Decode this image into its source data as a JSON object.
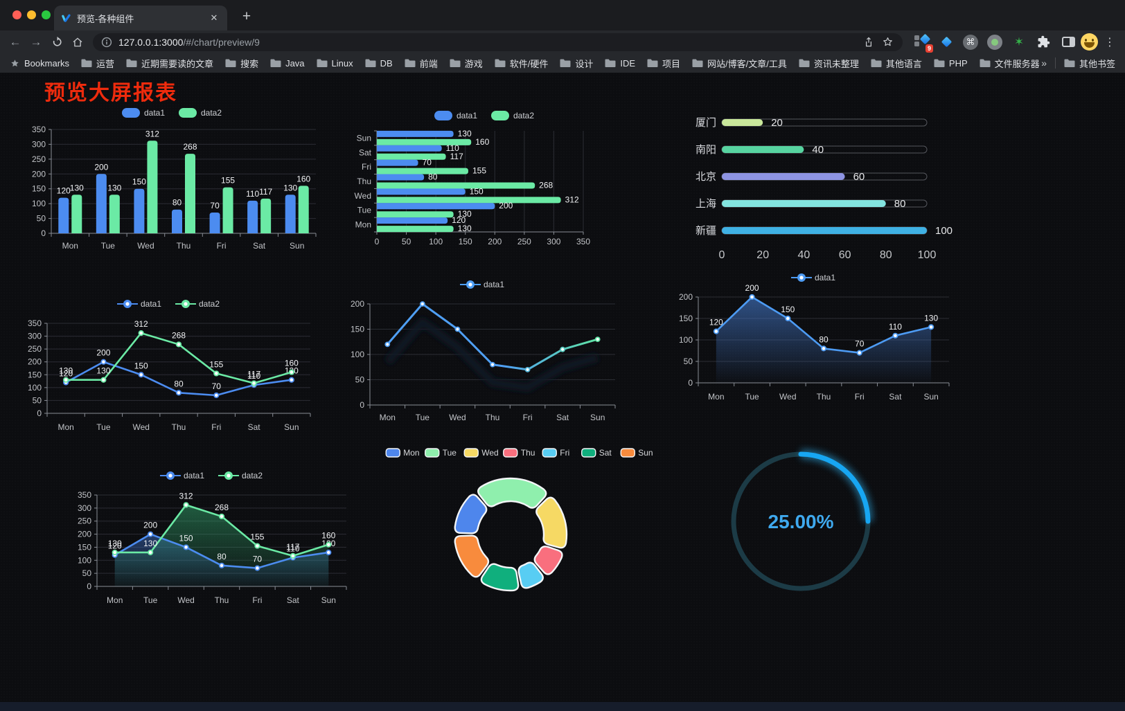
{
  "browser": {
    "tab_title": "预览-各种组件",
    "url_host": "127.0.0.1:3000",
    "url_path": "/#/chart/preview/9",
    "bookmarks_label": "Bookmarks",
    "bookmark_folders": [
      "运营",
      "近期需要读的文章",
      "搜索",
      "Java",
      "Linux",
      "DB",
      "前端",
      "游戏",
      "软件/硬件",
      "设计",
      "IDE",
      "项目",
      "网站/博客/文章/工具",
      "资讯未整理",
      "其他语言",
      "PHP",
      "文件服务器"
    ],
    "overflow_chevron": "»",
    "other_bookmarks_label": "其他书签",
    "extension_badge": "9",
    "new_tab_label": "+",
    "close_tab_label": "✕"
  },
  "page": {
    "title": "预览大屏报表",
    "title_color": "#ee2b0d"
  },
  "chart_data": [
    {
      "render": "bar_v",
      "type": "bar",
      "categories": [
        "Mon",
        "Tue",
        "Wed",
        "Thu",
        "Fri",
        "Sat",
        "Sun"
      ],
      "series": [
        {
          "name": "data1",
          "color": "#4C8CF0",
          "values": [
            120,
            200,
            150,
            80,
            70,
            110,
            130
          ]
        },
        {
          "name": "data2",
          "color": "#6BEAA5",
          "values": [
            130,
            130,
            312,
            268,
            155,
            117,
            160
          ]
        }
      ],
      "ylim": [
        0,
        350
      ],
      "ytick_step": 50,
      "legend_position": "top",
      "grid": true,
      "value_labels": true
    },
    {
      "render": "bar_h",
      "type": "bar",
      "orientation": "horizontal",
      "categories": [
        "Mon",
        "Tue",
        "Wed",
        "Thu",
        "Fri",
        "Sat",
        "Sun"
      ],
      "series": [
        {
          "name": "data1",
          "color": "#4C8CF0",
          "values": [
            120,
            200,
            150,
            80,
            70,
            110,
            130
          ]
        },
        {
          "name": "data2",
          "color": "#6BEAA5",
          "values": [
            130,
            130,
            312,
            268,
            155,
            117,
            160
          ]
        }
      ],
      "xlim": [
        0,
        350
      ],
      "xtick_step": 50,
      "legend_position": "top",
      "grid": true,
      "value_labels": true
    },
    {
      "render": "progress",
      "type": "bar",
      "subtype": "progress-capsules",
      "categories": [
        "厦门",
        "南阳",
        "北京",
        "上海",
        "新疆"
      ],
      "values": [
        20,
        40,
        60,
        80,
        100
      ],
      "colors": [
        "#C9E79B",
        "#57D4A0",
        "#8E94E3",
        "#83E4DF",
        "#3FB1E4"
      ],
      "xlim": [
        0,
        100
      ],
      "xticks": [
        0,
        20,
        40,
        60,
        80,
        100
      ],
      "value_labels": true
    },
    {
      "render": "line",
      "type": "line",
      "categories": [
        "Mon",
        "Tue",
        "Wed",
        "Thu",
        "Fri",
        "Sat",
        "Sun"
      ],
      "series": [
        {
          "name": "data1",
          "color": "#4C8CF0",
          "values": [
            120,
            200,
            150,
            80,
            70,
            110,
            130
          ]
        },
        {
          "name": "data2",
          "color": "#6BEAA5",
          "values": [
            130,
            130,
            312,
            268,
            155,
            117,
            160
          ]
        }
      ],
      "ylim": [
        0,
        350
      ],
      "ytick_step": 50,
      "legend_position": "top",
      "value_labels": true
    },
    {
      "render": "gradient_line",
      "type": "line",
      "categories": [
        "Mon",
        "Tue",
        "Wed",
        "Thu",
        "Fri",
        "Sat",
        "Sun"
      ],
      "series": [
        {
          "name": "data1",
          "gradient": [
            "#4F9FF4",
            "#5FE3A4"
          ],
          "values": [
            120,
            200,
            150,
            80,
            70,
            110,
            130
          ]
        }
      ],
      "ylim": [
        0,
        200
      ],
      "ytick_step": 50,
      "legend_position": "top",
      "value_labels": false
    },
    {
      "render": "line",
      "type": "area",
      "categories": [
        "Mon",
        "Tue",
        "Wed",
        "Thu",
        "Fri",
        "Sat",
        "Sun"
      ],
      "series": [
        {
          "name": "data1",
          "color": "#4D9BF3",
          "values": [
            120,
            200,
            150,
            80,
            70,
            110,
            130
          ],
          "area_gradient": [
            "rgba(70,125,210,0.60)",
            "rgba(70,125,210,0.02)"
          ]
        }
      ],
      "ylim": [
        0,
        200
      ],
      "ytick_step": 50,
      "legend_position": "top",
      "value_labels": true
    },
    {
      "render": "line",
      "type": "area",
      "categories": [
        "Mon",
        "Tue",
        "Wed",
        "Thu",
        "Fri",
        "Sat",
        "Sun"
      ],
      "series": [
        {
          "name": "data1",
          "color": "#4C8CF0",
          "values": [
            120,
            200,
            150,
            80,
            70,
            110,
            130
          ],
          "area_gradient": [
            "rgba(60,110,195,0.50)",
            "rgba(60,110,195,0.04)"
          ]
        },
        {
          "name": "data2",
          "color": "#6BEAA5",
          "values": [
            130,
            130,
            312,
            268,
            155,
            117,
            160
          ],
          "area_gradient": [
            "rgba(55,185,120,0.45)",
            "rgba(55,185,120,0.04)"
          ]
        }
      ],
      "ylim": [
        0,
        350
      ],
      "ytick_step": 50,
      "legend_position": "top",
      "value_labels": true
    },
    {
      "render": "pie",
      "type": "pie",
      "subtype": "donut",
      "categories": [
        "Mon",
        "Tue",
        "Wed",
        "Thu",
        "Fri",
        "Sat",
        "Sun"
      ],
      "values": [
        120,
        200,
        150,
        80,
        70,
        110,
        130
      ],
      "colors": [
        "#4E86EC",
        "#8FEFAD",
        "#F6D964",
        "#F96F7E",
        "#58CDF3",
        "#10AF7D",
        "#F88B3D"
      ],
      "legend_position": "top"
    },
    {
      "render": "gauge",
      "type": "gauge",
      "percent": 25,
      "value_label": "25.00%",
      "color": "#17A6F2",
      "track_color": "#1C3B46",
      "text_color": "#3FA9EE"
    }
  ]
}
